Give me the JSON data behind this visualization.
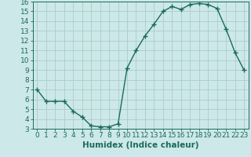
{
  "xlabel": "Humidex (Indice chaleur)",
  "x_values": [
    0,
    1,
    2,
    3,
    4,
    5,
    6,
    7,
    8,
    9,
    10,
    11,
    12,
    13,
    14,
    15,
    16,
    17,
    18,
    19,
    20,
    21,
    22,
    23
  ],
  "y_values": [
    7.0,
    5.8,
    5.8,
    5.8,
    4.8,
    4.2,
    3.3,
    3.2,
    3.2,
    3.5,
    9.2,
    11.0,
    12.5,
    13.7,
    15.0,
    15.5,
    15.2,
    15.7,
    15.8,
    15.7,
    15.3,
    13.2,
    10.8,
    9.0
  ],
  "line_color": "#1a6b5a",
  "marker": "+",
  "marker_size": 4,
  "bg_color": "#cde8e8",
  "grid_color": "#aacccc",
  "ylim": [
    3,
    16
  ],
  "xlim": [
    -0.5,
    23.5
  ],
  "yticks": [
    3,
    4,
    5,
    6,
    7,
    8,
    9,
    10,
    11,
    12,
    13,
    14,
    15,
    16
  ],
  "xticks": [
    0,
    1,
    2,
    3,
    4,
    5,
    6,
    7,
    8,
    9,
    10,
    11,
    12,
    13,
    14,
    15,
    16,
    17,
    18,
    19,
    20,
    21,
    22,
    23
  ],
  "tick_fontsize": 6.5,
  "xlabel_fontsize": 7.5
}
